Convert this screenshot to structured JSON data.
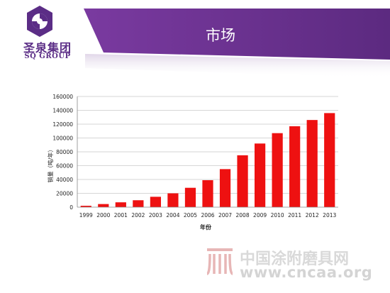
{
  "header": {
    "title": "市场",
    "brand_cn": "圣泉集团",
    "brand_en": "SQ GROUP",
    "banner_color": "#6a2e8c"
  },
  "watermark": {
    "site_name": "中国涂附磨具网",
    "url": "www.cncaa.org"
  },
  "chart_data": {
    "type": "bar",
    "title": "",
    "xlabel": "年份",
    "ylabel": "销量（吨/年）",
    "categories": [
      "1999",
      "2000",
      "2001",
      "2002",
      "2003",
      "2004",
      "2005",
      "2006",
      "2007",
      "2008",
      "2009",
      "2010",
      "2011",
      "2012",
      "2013"
    ],
    "values": [
      2000,
      4500,
      7000,
      10000,
      15000,
      20000,
      28000,
      39000,
      55000,
      75000,
      92000,
      107000,
      117000,
      126000,
      136000
    ],
    "ylim": [
      0,
      160000
    ],
    "yticks": [
      0,
      20000,
      40000,
      60000,
      80000,
      100000,
      120000,
      140000,
      160000
    ],
    "ytick_labels": [
      "0",
      "20000",
      "40000",
      "60000",
      "80000",
      "100000",
      "120000",
      "140000",
      "160000"
    ],
    "grid": true,
    "legend": "none",
    "bar_color": "#ee1111"
  }
}
